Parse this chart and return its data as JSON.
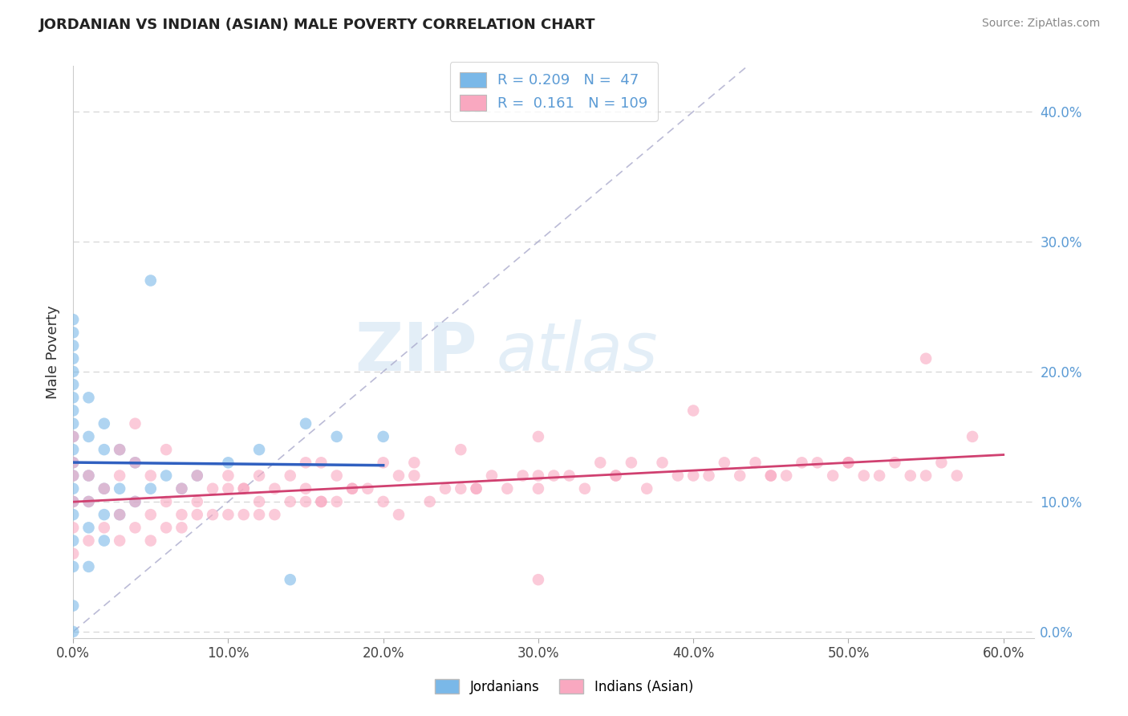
{
  "title": "JORDANIAN VS INDIAN (ASIAN) MALE POVERTY CORRELATION CHART",
  "source": "Source: ZipAtlas.com",
  "ylabel": "Male Poverty",
  "xlim": [
    0.0,
    0.62
  ],
  "ylim": [
    -0.005,
    0.435
  ],
  "yticks": [
    0.0,
    0.1,
    0.2,
    0.3,
    0.4
  ],
  "xticks": [
    0.0,
    0.1,
    0.2,
    0.3,
    0.4,
    0.5,
    0.6
  ],
  "jordanian_color": "#7ab8e8",
  "indian_color": "#f9a8c0",
  "jordanian_line_color": "#3060c0",
  "indian_line_color": "#d04070",
  "diag_color": "#aaaacc",
  "watermark_zip": "ZIP",
  "watermark_atlas": "atlas",
  "legend_line1": "R = 0.209   N =  47",
  "legend_line2": "R =  0.161   N = 109",
  "tick_color": "#5b9bd5",
  "grid_color": "#cccccc",
  "title_color": "#222222",
  "source_color": "#888888",
  "jordanian_x": [
    0.0,
    0.0,
    0.0,
    0.0,
    0.0,
    0.0,
    0.0,
    0.0,
    0.0,
    0.0,
    0.0,
    0.0,
    0.0,
    0.0,
    0.0,
    0.0,
    0.0,
    0.0,
    0.0,
    0.0,
    0.01,
    0.01,
    0.01,
    0.01,
    0.01,
    0.01,
    0.02,
    0.02,
    0.02,
    0.02,
    0.02,
    0.03,
    0.03,
    0.03,
    0.04,
    0.04,
    0.05,
    0.05,
    0.06,
    0.07,
    0.08,
    0.1,
    0.12,
    0.14,
    0.15,
    0.17,
    0.2
  ],
  "jordanian_y": [
    0.0,
    0.02,
    0.05,
    0.07,
    0.09,
    0.1,
    0.11,
    0.12,
    0.13,
    0.14,
    0.15,
    0.16,
    0.17,
    0.18,
    0.19,
    0.2,
    0.21,
    0.22,
    0.23,
    0.24,
    0.05,
    0.08,
    0.1,
    0.12,
    0.15,
    0.18,
    0.07,
    0.09,
    0.11,
    0.14,
    0.16,
    0.09,
    0.11,
    0.14,
    0.1,
    0.13,
    0.27,
    0.11,
    0.12,
    0.11,
    0.12,
    0.13,
    0.14,
    0.04,
    0.16,
    0.15,
    0.15
  ],
  "indian_x": [
    0.0,
    0.0,
    0.0,
    0.0,
    0.0,
    0.0,
    0.01,
    0.01,
    0.01,
    0.02,
    0.02,
    0.03,
    0.03,
    0.03,
    0.04,
    0.04,
    0.04,
    0.05,
    0.05,
    0.05,
    0.06,
    0.06,
    0.07,
    0.07,
    0.08,
    0.08,
    0.09,
    0.09,
    0.1,
    0.1,
    0.11,
    0.11,
    0.12,
    0.12,
    0.13,
    0.13,
    0.14,
    0.14,
    0.15,
    0.15,
    0.16,
    0.16,
    0.17,
    0.17,
    0.18,
    0.19,
    0.2,
    0.2,
    0.21,
    0.22,
    0.23,
    0.24,
    0.25,
    0.25,
    0.26,
    0.27,
    0.28,
    0.29,
    0.3,
    0.3,
    0.31,
    0.32,
    0.33,
    0.34,
    0.35,
    0.36,
    0.37,
    0.38,
    0.39,
    0.4,
    0.41,
    0.42,
    0.43,
    0.44,
    0.45,
    0.46,
    0.47,
    0.48,
    0.49,
    0.5,
    0.51,
    0.52,
    0.53,
    0.54,
    0.55,
    0.56,
    0.57,
    0.58,
    0.04,
    0.06,
    0.08,
    0.1,
    0.12,
    0.15,
    0.18,
    0.22,
    0.26,
    0.3,
    0.35,
    0.4,
    0.45,
    0.5,
    0.55,
    0.03,
    0.07,
    0.11,
    0.16,
    0.21,
    0.3
  ],
  "indian_y": [
    0.06,
    0.08,
    0.1,
    0.12,
    0.13,
    0.15,
    0.07,
    0.1,
    0.12,
    0.08,
    0.11,
    0.07,
    0.09,
    0.12,
    0.08,
    0.1,
    0.13,
    0.07,
    0.09,
    0.12,
    0.08,
    0.1,
    0.08,
    0.11,
    0.09,
    0.12,
    0.09,
    0.11,
    0.09,
    0.12,
    0.09,
    0.11,
    0.09,
    0.12,
    0.09,
    0.11,
    0.1,
    0.12,
    0.1,
    0.13,
    0.1,
    0.13,
    0.1,
    0.12,
    0.11,
    0.11,
    0.1,
    0.13,
    0.12,
    0.13,
    0.1,
    0.11,
    0.11,
    0.14,
    0.11,
    0.12,
    0.11,
    0.12,
    0.11,
    0.15,
    0.12,
    0.12,
    0.11,
    0.13,
    0.12,
    0.13,
    0.11,
    0.13,
    0.12,
    0.17,
    0.12,
    0.13,
    0.12,
    0.13,
    0.12,
    0.12,
    0.13,
    0.13,
    0.12,
    0.13,
    0.12,
    0.12,
    0.13,
    0.12,
    0.12,
    0.13,
    0.12,
    0.15,
    0.16,
    0.14,
    0.1,
    0.11,
    0.1,
    0.11,
    0.11,
    0.12,
    0.11,
    0.12,
    0.12,
    0.12,
    0.12,
    0.13,
    0.21,
    0.14,
    0.09,
    0.11,
    0.1,
    0.09,
    0.04
  ]
}
